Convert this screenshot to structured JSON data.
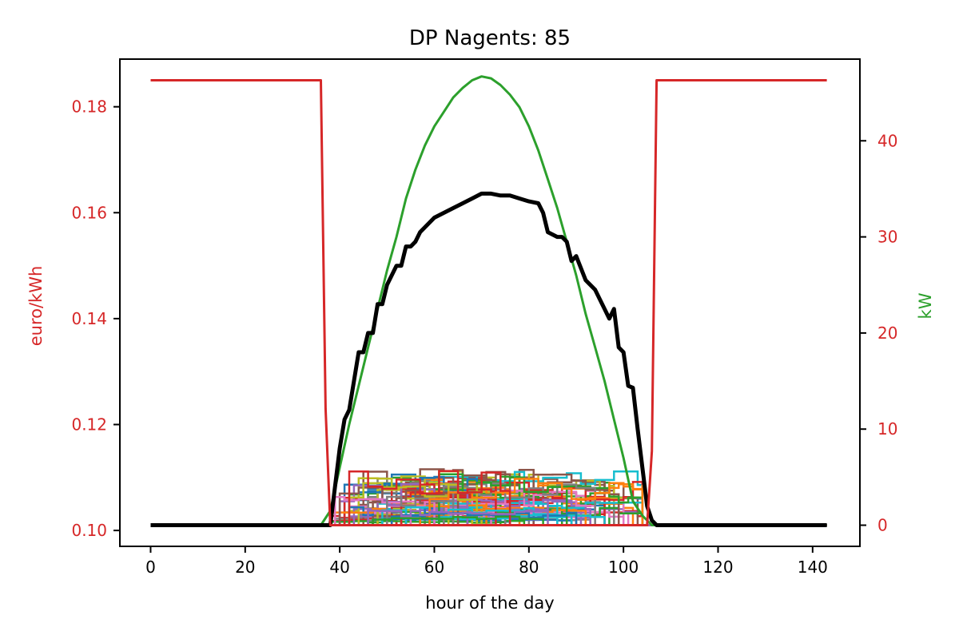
{
  "chart_data": {
    "type": "line",
    "title": "DP Nagents: 85",
    "xlabel": "hour of the day",
    "ylabel_left": "euro/kWh",
    "ylabel_right": "kW",
    "xlim": [
      -6.5,
      150
    ],
    "ylim_left": [
      0.097,
      0.189
    ],
    "ylim_right": [
      -2.2,
      48.5
    ],
    "xticks": [
      0,
      20,
      40,
      60,
      80,
      100,
      120,
      140
    ],
    "xtick_labels": [
      "0",
      "20",
      "40",
      "60",
      "80",
      "100",
      "120",
      "140"
    ],
    "yticks_left": [
      0.1,
      0.12,
      0.14,
      0.16,
      0.18
    ],
    "ytick_labels_left": [
      "0.10",
      "0.12",
      "0.14",
      "0.16",
      "0.18"
    ],
    "yticks_right": [
      0,
      10,
      20,
      30,
      40
    ],
    "ytick_labels_right": [
      "0",
      "10",
      "20",
      "30",
      "40"
    ],
    "grid": false,
    "legend": "none",
    "colors": {
      "price": "#d62728",
      "pv": "#2ca02c",
      "total": "#000000",
      "left_axis_text": "#d62728",
      "right_axis_label": "#2ca02c",
      "right_tick_text": "#d62728"
    },
    "price_euro_per_kwh": {
      "axis": "left",
      "x": [
        0,
        36,
        37,
        38,
        39,
        40,
        105,
        106,
        107,
        143
      ],
      "y": [
        0.185,
        0.185,
        0.123,
        0.101,
        0.101,
        0.101,
        0.101,
        0.115,
        0.185,
        0.185
      ]
    },
    "pv_production_kw": {
      "axis": "right",
      "x": [
        0,
        36,
        38,
        40,
        42,
        44,
        46,
        48,
        50,
        52,
        54,
        56,
        58,
        60,
        62,
        64,
        66,
        68,
        70,
        72,
        74,
        76,
        78,
        80,
        82,
        84,
        86,
        88,
        90,
        92,
        94,
        96,
        98,
        100,
        102,
        104,
        106,
        107,
        143
      ],
      "y": [
        0,
        0,
        1.5,
        6,
        10.5,
        14.5,
        18.5,
        22.5,
        26.5,
        30,
        34,
        37,
        39.5,
        41.5,
        43,
        44.5,
        45.5,
        46.3,
        46.7,
        46.5,
        45.8,
        44.8,
        43.5,
        41.5,
        39,
        36,
        33,
        29.5,
        26,
        22,
        18.5,
        15,
        11,
        7,
        2.5,
        1,
        0,
        0,
        0
      ]
    },
    "total_consumption_kw": {
      "axis": "right",
      "x": [
        0,
        37,
        38,
        40,
        41,
        42,
        43,
        44,
        45,
        46,
        47,
        48,
        49,
        50,
        51,
        52,
        53,
        54,
        55,
        56,
        57,
        58,
        60,
        62,
        64,
        66,
        68,
        70,
        72,
        74,
        76,
        78,
        80,
        82,
        83,
        84,
        86,
        87,
        88,
        89,
        90,
        92,
        94,
        96,
        97,
        98,
        99,
        100,
        101,
        102,
        103,
        104,
        105,
        106,
        107,
        143
      ],
      "y": [
        0,
        0,
        0,
        8,
        11,
        12,
        15,
        18,
        18,
        20,
        20,
        23,
        23,
        25,
        26,
        27,
        27,
        29,
        29,
        29.5,
        30.5,
        31,
        32,
        32.5,
        33,
        33.5,
        34,
        34.5,
        34.5,
        34.3,
        34.3,
        34,
        33.7,
        33.5,
        32.5,
        30.5,
        30,
        30,
        29.5,
        27.5,
        28,
        25.5,
        24.5,
        22.5,
        21.5,
        22.5,
        18.5,
        18,
        14.5,
        14.3,
        10,
        6,
        2,
        0.5,
        0,
        0
      ]
    },
    "agent_series_count": 85,
    "agent_color_cycle": [
      "#1f77b4",
      "#ff7f0e",
      "#2ca02c",
      "#d62728",
      "#9467bd",
      "#8c564b",
      "#e377c2",
      "#7f7f7f",
      "#bcbd22",
      "#17becf"
    ]
  }
}
